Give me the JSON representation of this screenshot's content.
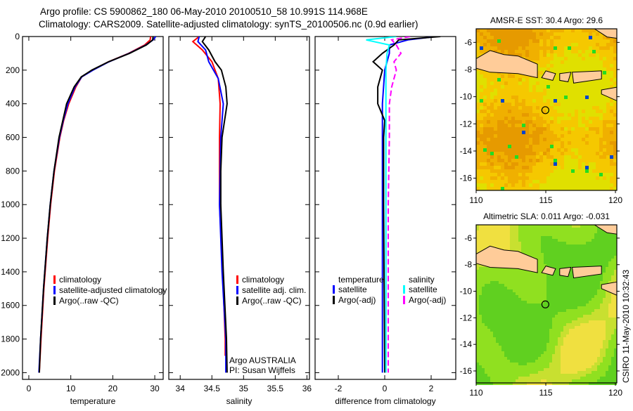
{
  "title_line1": "Argo profile: CS 5900862_180 06-May-2010 20100510_58 10.991S 114.968E",
  "title_line2": "Climatology: CARS2009. Satellite-adjusted climatology: synTS_20100506.nc (0.9d earlier)",
  "side_stamp": "CSIRO 11-May-2010 10:32:43",
  "colors": {
    "climatology": "#ff0000",
    "satellite": "#0000ff",
    "argo": "#000000",
    "sal_satellite": "#00ffff",
    "sal_argo": "#ff00ff",
    "land": "#ffcc99"
  },
  "chart_data": [
    {
      "type": "line",
      "xlabel": "temperature",
      "ylim": [
        2040,
        0
      ],
      "xlim": [
        -1.5,
        32
      ],
      "xticks": [
        0,
        10,
        20,
        30
      ],
      "yticks": [
        0,
        200,
        400,
        600,
        800,
        1000,
        1200,
        1400,
        1600,
        1800,
        2000
      ],
      "legend": [
        "climatology",
        "satellite-adjusted climatology",
        "Argo(..raw -QC)"
      ],
      "legend_position": "bottom-right",
      "series": [
        {
          "name": "climatology",
          "color": "#ff0000",
          "depth": [
            0,
            20,
            50,
            100,
            150,
            200,
            240,
            300,
            400,
            500,
            600,
            800,
            1000,
            1200,
            1500,
            1800,
            2000
          ],
          "values": [
            29.0,
            28.9,
            27.6,
            23.8,
            19.0,
            15.2,
            12.6,
            11.2,
            9.5,
            8.3,
            7.4,
            6.1,
            5.2,
            4.5,
            3.6,
            2.9,
            2.5
          ]
        },
        {
          "name": "satellite-adjusted climatology",
          "color": "#0000ff",
          "depth": [
            0,
            20,
            50,
            100,
            150,
            200,
            240,
            300,
            400,
            500,
            600,
            800,
            1000,
            1200,
            1500,
            1800,
            2000
          ],
          "values": [
            30.2,
            29.6,
            27.9,
            23.9,
            19.1,
            15.3,
            12.6,
            11.0,
            9.3,
            8.2,
            7.3,
            6.0,
            5.1,
            4.4,
            3.5,
            2.8,
            2.4
          ]
        },
        {
          "name": "Argo(..raw -QC)",
          "color": "#000000",
          "depth": [
            0,
            20,
            50,
            100,
            150,
            200,
            240,
            300,
            400,
            500,
            600,
            800,
            1000,
            1200,
            1500,
            1800,
            2000
          ],
          "values": [
            29.6,
            29.5,
            28.0,
            24.0,
            19.0,
            15.0,
            12.5,
            10.8,
            9.0,
            8.1,
            7.2,
            6.0,
            5.1,
            4.4,
            3.5,
            2.8,
            2.5
          ]
        }
      ]
    },
    {
      "type": "line",
      "xlabel": "salinity",
      "ylim": [
        2040,
        0
      ],
      "xlim": [
        33.82,
        36.04
      ],
      "xticks": [
        34,
        34.5,
        35,
        35.5,
        36
      ],
      "legend": [
        "climatology",
        "satellite adj. clim.",
        "Argo(..raw -QC)"
      ],
      "legend_position": "bottom-right",
      "annotations": [
        "Argo AUSTRALIA",
        "PI: Susan Wijffels"
      ],
      "series": [
        {
          "name": "climatology",
          "color": "#ff0000",
          "depth": [
            0,
            30,
            80,
            150,
            250,
            400,
            600,
            1000,
            1400,
            1800,
            1900
          ],
          "values": [
            34.3,
            34.2,
            34.35,
            34.5,
            34.6,
            34.63,
            34.62,
            34.62,
            34.67,
            34.71,
            34.71
          ]
        },
        {
          "name": "satellite adj. clim.",
          "color": "#0000ff",
          "depth": [
            0,
            30,
            80,
            150,
            250,
            400,
            600,
            1000,
            1400,
            1800,
            2000
          ],
          "values": [
            34.3,
            34.28,
            34.4,
            34.45,
            34.6,
            34.68,
            34.64,
            34.62,
            34.66,
            34.72,
            34.72
          ]
        },
        {
          "name": "Argo(..raw -QC)",
          "color": "#000000",
          "depth": [
            0,
            30,
            80,
            150,
            200,
            300,
            400,
            500,
            600,
            800,
            1000,
            1400,
            1800,
            2000
          ],
          "values": [
            34.4,
            34.35,
            34.45,
            34.55,
            34.65,
            34.72,
            34.74,
            34.7,
            34.66,
            34.64,
            34.64,
            34.68,
            34.73,
            34.74
          ]
        }
      ]
    },
    {
      "type": "line",
      "xlabel": "difference from climatology",
      "ylim": [
        2040,
        0
      ],
      "xlim": [
        -3,
        3.06
      ],
      "xticks": [
        -2,
        0,
        2
      ],
      "legend_temperature": {
        "header": "temperature",
        "items": [
          "satellite",
          "Argo(-adj)"
        ]
      },
      "legend_salinity": {
        "header": "salinity",
        "items": [
          "satellite",
          "Argo(-adj)"
        ]
      },
      "legend_position": "bottom",
      "series": [
        {
          "name": "temperature satellite",
          "color": "#0000ff",
          "depth": [
            0,
            20,
            50,
            100,
            200,
            400,
            600,
            1000,
            1400,
            2000
          ],
          "values": [
            2.2,
            1.0,
            0.2,
            0.2,
            0.0,
            -0.1,
            -0.1,
            -0.1,
            -0.1,
            -0.1
          ]
        },
        {
          "name": "temperature Argo(-adj)",
          "color": "#000000",
          "depth": [
            0,
            20,
            50,
            100,
            150,
            200,
            300,
            400,
            500,
            600,
            1000,
            2000
          ],
          "values": [
            2.4,
            0.6,
            0.4,
            -0.1,
            -0.5,
            -0.1,
            -0.3,
            -0.3,
            0,
            -0.05,
            -0.05,
            0.0
          ]
        },
        {
          "name": "salinity satellite",
          "color": "#00ffff",
          "depth": [
            0,
            20,
            50,
            100,
            200,
            400,
            600,
            1000,
            2000
          ],
          "values": [
            0.5,
            -0.8,
            0.2,
            0.1,
            0.05,
            0.05,
            0.05,
            0.05,
            0.05
          ]
        },
        {
          "name": "salinity Argo(-adj)",
          "color": "#ff00ff",
          "depth": [
            0,
            20,
            50,
            100,
            150,
            200,
            300,
            400,
            600,
            1000,
            2000
          ],
          "values": [
            1.1,
            0.3,
            0.5,
            0.7,
            0.4,
            0.5,
            0.3,
            0.2,
            0.2,
            0.15,
            0.15
          ]
        }
      ]
    },
    {
      "type": "heatmap",
      "title": "AMSR-E SST: 30.4 Argo: 29.6",
      "xlim": [
        110,
        120.1
      ],
      "ylim": [
        -16.9,
        -5
      ],
      "xticks": [
        110,
        115,
        120
      ],
      "yticks": [
        -6,
        -8,
        -10,
        -12,
        -14,
        -16
      ],
      "marker": {
        "lon": 114.968,
        "lat": -10.991
      }
    },
    {
      "type": "heatmap",
      "title": "Altimetric SLA: 0.011 Argo: -0.031",
      "xlim": [
        110,
        120.1
      ],
      "ylim": [
        -16.9,
        -5
      ],
      "xticks": [
        110,
        115,
        120
      ],
      "yticks": [
        -6,
        -8,
        -10,
        -12,
        -14,
        -16
      ],
      "marker": {
        "lon": 114.968,
        "lat": -10.991
      }
    }
  ]
}
